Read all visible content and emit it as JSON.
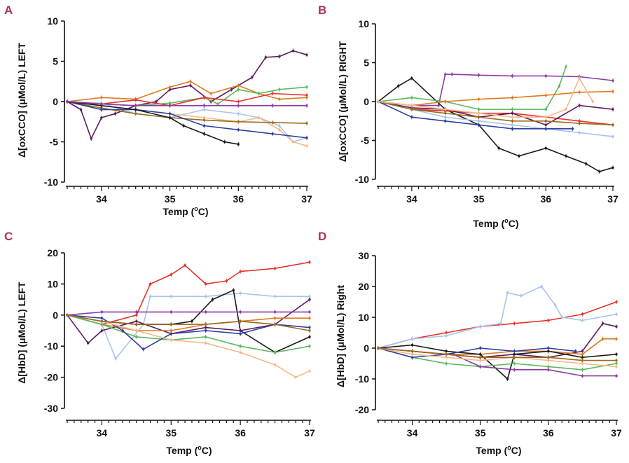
{
  "panel_letter_color": "#b03060",
  "chart_data": [
    {
      "panel": "A",
      "type": "line",
      "xlabel": "Temp (",
      "xlabel_sup": "o",
      "xlabel_end": "C)",
      "ylabel": "Δ[oxCCO] (μMol/L) LEFT",
      "xlim": [
        33.5,
        37
      ],
      "ylim": [
        -10,
        10
      ],
      "xticks": [
        34,
        35,
        36,
        37
      ],
      "yticks": [
        -10,
        -5,
        0,
        5,
        10
      ],
      "series": [
        {
          "color": "#5b1a5e",
          "x": [
            33.5,
            33.7,
            33.85,
            34.0,
            34.2,
            34.5,
            34.8,
            35.0,
            35.3,
            35.6,
            35.9,
            36.2,
            36.4,
            36.6,
            36.8,
            37.0
          ],
          "y": [
            0,
            -1,
            -4.6,
            -2,
            -1.5,
            -0.5,
            0,
            1.5,
            2,
            0,
            1.5,
            3,
            5.5,
            5.6,
            6.3,
            5.8
          ]
        },
        {
          "color": "#e07a1f",
          "x": [
            33.5,
            34.0,
            34.5,
            35.0,
            35.3,
            35.6,
            36.0,
            36.3,
            36.6,
            37.0
          ],
          "y": [
            0,
            0.5,
            0.3,
            1.8,
            2.5,
            1,
            2,
            1,
            0.3,
            0.5
          ]
        },
        {
          "color": "#5cb85c",
          "x": [
            33.5,
            34.0,
            34.5,
            35.0,
            35.5,
            35.7,
            36.0,
            36.3,
            36.6,
            37.0
          ],
          "y": [
            0,
            -0.3,
            -0.5,
            -0.2,
            0.5,
            -0.3,
            1.5,
            1,
            1.5,
            1.8
          ]
        },
        {
          "color": "#e63228",
          "x": [
            33.5,
            34.0,
            34.5,
            35.0,
            35.5,
            36.0,
            36.5,
            37.0
          ],
          "y": [
            0,
            -0.3,
            0.2,
            -0.5,
            0.5,
            0,
            1,
            0.8
          ]
        },
        {
          "color": "#a9c4ec",
          "x": [
            33.5,
            34.0,
            34.5,
            35.0,
            35.5,
            36.0,
            36.3,
            36.6,
            36.8,
            37.0
          ],
          "y": [
            0,
            -0.2,
            -1.5,
            -2,
            -1,
            -1.5,
            -2,
            -3,
            -5,
            -4.5
          ]
        },
        {
          "color": "#f6b98a",
          "x": [
            33.5,
            34.0,
            34.5,
            35.0,
            35.5,
            36.0,
            36.3,
            36.6,
            36.8,
            37.0
          ],
          "y": [
            0,
            -0.5,
            -1,
            -1.5,
            -2,
            -2.5,
            -2,
            -3.5,
            -5,
            -5.5
          ]
        },
        {
          "color": "#9a6b1f",
          "x": [
            33.5,
            34.0,
            34.5,
            35.0,
            35.5,
            36.0,
            36.5,
            37.0
          ],
          "y": [
            0,
            -0.8,
            -1.5,
            -2,
            -2.3,
            -2.5,
            -2.6,
            -2.7
          ]
        },
        {
          "color": "#2e3fa0",
          "x": [
            33.5,
            34.0,
            34.5,
            35.0,
            35.5,
            36.0,
            36.5,
            37.0
          ],
          "y": [
            0,
            -1,
            -1,
            -1.5,
            -3,
            -3.5,
            -4,
            -4.5
          ]
        },
        {
          "color": "#1a1a1a",
          "x": [
            33.5,
            34.0,
            34.5,
            35.0,
            35.2,
            35.5,
            35.8,
            36.0
          ],
          "y": [
            0,
            -0.5,
            -1,
            -2,
            -3,
            -4,
            -5,
            -5.3
          ]
        },
        {
          "color": "#8e3aa3",
          "x": [
            33.5,
            34.0,
            34.5,
            35.0,
            35.5,
            36.0,
            36.5,
            37.0
          ],
          "y": [
            0,
            -0.3,
            -0.5,
            -0.5,
            -0.5,
            -0.5,
            -0.5,
            -0.5
          ]
        }
      ]
    },
    {
      "panel": "B",
      "type": "line",
      "xlabel": "Temp (",
      "xlabel_sup": "o",
      "xlabel_end": "C)",
      "ylabel": "Δ[oxCCO] (μMol/L) RIGHT",
      "xlim": [
        33.5,
        37
      ],
      "ylim": [
        -10,
        10
      ],
      "xticks": [
        34,
        35,
        36,
        37
      ],
      "yticks": [
        -10,
        -5,
        0,
        5,
        10
      ],
      "series": [
        {
          "color": "#8e3aa3",
          "x": [
            33.5,
            34.0,
            34.4,
            34.5,
            34.6,
            35.0,
            35.5,
            36.0,
            36.5,
            37.0
          ],
          "y": [
            0,
            -0.5,
            -0.5,
            3.5,
            3.5,
            3.4,
            3.3,
            3.3,
            3.2,
            2.7
          ]
        },
        {
          "color": "#1a1a1a",
          "x": [
            33.5,
            33.8,
            34.0,
            34.5,
            35.0,
            35.3,
            35.6,
            36.0,
            36.3,
            36.6,
            36.8,
            37.0
          ],
          "y": [
            0,
            2,
            3,
            -1,
            -3,
            -6,
            -7,
            -6,
            -7,
            -8,
            -9,
            -8.5
          ]
        },
        {
          "color": "#5cb85c",
          "x": [
            33.5,
            34.0,
            34.5,
            35.0,
            35.5,
            36.0,
            36.2,
            36.3
          ],
          "y": [
            0,
            0.5,
            0,
            -1,
            -1,
            -1,
            2,
            4.5
          ]
        },
        {
          "color": "#e07a1f",
          "x": [
            33.5,
            34.0,
            34.5,
            35.0,
            35.5,
            36.0,
            36.5,
            37.0
          ],
          "y": [
            0,
            -0.5,
            0,
            0.3,
            0.5,
            0.8,
            1.2,
            1.3
          ]
        },
        {
          "color": "#e63228",
          "x": [
            33.5,
            34.0,
            34.5,
            35.0,
            35.5,
            36.0,
            36.5,
            37.0
          ],
          "y": [
            0,
            -1,
            -1.2,
            -1.5,
            -1.5,
            -2,
            -2.5,
            -3
          ]
        },
        {
          "color": "#5b1a5e",
          "x": [
            33.5,
            34.0,
            34.5,
            35.0,
            35.5,
            36.0,
            36.5,
            37.0
          ],
          "y": [
            0,
            -0.8,
            -1,
            -2,
            -1.5,
            -3,
            -0.5,
            -1
          ]
        },
        {
          "color": "#a9c4ec",
          "x": [
            33.5,
            34.0,
            34.5,
            35.0,
            35.5,
            36.0,
            36.5,
            37.0
          ],
          "y": [
            0,
            -1,
            -2,
            -2.5,
            -3,
            -3.5,
            -4,
            -4.5
          ]
        },
        {
          "color": "#2e3fa0",
          "x": [
            33.5,
            34.0,
            34.5,
            35.0,
            35.5,
            36.0,
            36.4
          ],
          "y": [
            0,
            -2,
            -2.5,
            -3,
            -3.5,
            -3.5,
            -3.5
          ]
        },
        {
          "color": "#9a6b1f",
          "x": [
            33.5,
            34.0,
            34.5,
            35.0,
            35.5,
            36.0,
            36.5,
            37.0
          ],
          "y": [
            0,
            -1,
            -1.5,
            -2,
            -2.5,
            -2.5,
            -2.8,
            -3
          ]
        },
        {
          "color": "#f6b98a",
          "x": [
            33.5,
            34.0,
            34.5,
            35.0,
            35.5,
            36.0,
            36.3,
            36.5,
            36.7
          ],
          "y": [
            0,
            -0.5,
            -1,
            -1.5,
            -2,
            -2,
            -1,
            3,
            0
          ]
        }
      ]
    },
    {
      "panel": "C",
      "type": "line",
      "xlabel": "Temp (",
      "xlabel_sup": "o",
      "xlabel_end": "C)",
      "ylabel": "Δ[HbD] (μMol/L) LEFT",
      "xlim": [
        33.5,
        37
      ],
      "ylim": [
        -30,
        20
      ],
      "xticks": [
        34,
        35,
        36,
        37
      ],
      "yticks": [
        -30,
        -20,
        -10,
        0,
        10,
        20
      ],
      "series": [
        {
          "color": "#e63228",
          "x": [
            33.5,
            34.0,
            34.5,
            34.7,
            35.0,
            35.2,
            35.5,
            35.8,
            36.0,
            36.5,
            37.0
          ],
          "y": [
            0,
            -3,
            0,
            10,
            13,
            16,
            10,
            11,
            14,
            15,
            17
          ]
        },
        {
          "color": "#a9c4ec",
          "x": [
            33.5,
            34.0,
            34.2,
            34.6,
            34.7,
            35.0,
            35.5,
            36.0,
            36.5,
            37.0
          ],
          "y": [
            0,
            -3,
            -14,
            -3,
            6,
            6,
            6,
            7,
            6,
            6
          ]
        },
        {
          "color": "#1a1a1a",
          "x": [
            33.5,
            34.0,
            34.5,
            35.0,
            35.3,
            35.6,
            35.9,
            36.0,
            36.5,
            37.0
          ],
          "y": [
            0,
            -2,
            -3,
            -3,
            -2,
            5,
            8,
            -5,
            -12,
            -7
          ]
        },
        {
          "color": "#5b1a5e",
          "x": [
            33.5,
            33.8,
            34.0,
            34.5,
            35.0,
            35.5,
            36.0,
            36.5,
            37.0
          ],
          "y": [
            0,
            -9,
            -5,
            -2,
            -6,
            -4,
            -5,
            -3,
            5
          ]
        },
        {
          "color": "#8e3aa3",
          "x": [
            33.5,
            34.0,
            34.5,
            35.0,
            35.5,
            36.0,
            36.5,
            37.0
          ],
          "y": [
            0,
            1,
            1,
            1,
            1,
            1,
            1,
            1
          ]
        },
        {
          "color": "#e07a1f",
          "x": [
            33.5,
            34.0,
            34.5,
            35.0,
            35.5,
            36.0,
            36.5,
            37.0
          ],
          "y": [
            0,
            -3,
            -5,
            -5,
            -3,
            -2,
            -1,
            -1
          ]
        },
        {
          "color": "#5cb85c",
          "x": [
            33.5,
            34.0,
            34.5,
            35.0,
            35.5,
            36.0,
            36.5,
            37.0
          ],
          "y": [
            0,
            -3,
            -7,
            -8,
            -7,
            -10,
            -12,
            -10
          ]
        },
        {
          "color": "#2e3fa0",
          "x": [
            33.5,
            34.0,
            34.3,
            34.6,
            35.0,
            35.5,
            36.0,
            36.5,
            37.0
          ],
          "y": [
            0,
            -1,
            -5,
            -11,
            -6,
            -5,
            -6,
            -3,
            -4
          ]
        },
        {
          "color": "#f6b98a",
          "x": [
            33.5,
            34.0,
            34.5,
            35.0,
            35.5,
            36.0,
            36.5,
            36.8,
            37.0
          ],
          "y": [
            0,
            -2,
            -5,
            -8,
            -9,
            -12,
            -16,
            -20,
            -18
          ]
        },
        {
          "color": "#9a6b1f",
          "x": [
            33.5,
            34.0,
            34.5,
            35.0,
            35.5,
            36.0,
            36.5,
            37.0
          ],
          "y": [
            0,
            -2,
            -3,
            -3,
            -3,
            -2,
            -3,
            -5
          ]
        }
      ]
    },
    {
      "panel": "D",
      "type": "line",
      "xlabel": "Temp (",
      "xlabel_sup": "o",
      "xlabel_end": "C)",
      "ylabel": "Δ[HbD] (μMol/L) Right",
      "xlim": [
        33.5,
        37
      ],
      "ylim": [
        -20,
        30
      ],
      "xticks": [
        34,
        35,
        36,
        37
      ],
      "yticks": [
        -20,
        -10,
        0,
        10,
        20,
        30
      ],
      "series": [
        {
          "color": "#e63228",
          "x": [
            33.5,
            34.0,
            34.5,
            35.0,
            35.5,
            36.0,
            36.5,
            37.0
          ],
          "y": [
            0,
            3,
            5,
            7,
            8,
            9,
            11,
            15
          ]
        },
        {
          "color": "#a9c4ec",
          "x": [
            33.5,
            34.0,
            34.5,
            35.0,
            35.3,
            35.4,
            35.6,
            35.9,
            36.1,
            36.2,
            36.5,
            37.0
          ],
          "y": [
            0,
            3,
            4,
            7,
            8,
            18,
            17,
            20,
            14,
            10,
            9,
            11
          ]
        },
        {
          "color": "#5b1a5e",
          "x": [
            33.5,
            34.0,
            34.5,
            35.0,
            35.5,
            36.0,
            36.5,
            36.8,
            37.0
          ],
          "y": [
            0,
            -1,
            -2,
            -3,
            -2,
            -3,
            -1,
            8,
            7
          ]
        },
        {
          "color": "#e07a1f",
          "x": [
            33.5,
            34.0,
            34.5,
            35.0,
            35.5,
            36.0,
            36.5,
            36.8,
            37.0
          ],
          "y": [
            0,
            -1,
            -2,
            -2,
            -1,
            -1,
            -2,
            3,
            3
          ]
        },
        {
          "color": "#1a1a1a",
          "x": [
            33.5,
            34.0,
            34.5,
            35.0,
            35.4,
            35.5,
            36.0,
            36.5,
            37.0
          ],
          "y": [
            0,
            1,
            -1,
            -2,
            -10,
            -2,
            -1,
            -3,
            -2
          ]
        },
        {
          "color": "#5cb85c",
          "x": [
            33.5,
            34.0,
            34.5,
            35.0,
            35.5,
            36.0,
            36.5,
            37.0
          ],
          "y": [
            0,
            -3,
            -5,
            -6,
            -5,
            -6,
            -7,
            -5
          ]
        },
        {
          "color": "#8e3aa3",
          "x": [
            33.5,
            34.0,
            34.5,
            34.6,
            35.0,
            35.5,
            36.0,
            36.5,
            37.0
          ],
          "y": [
            0,
            -1,
            -2,
            -2,
            -6,
            -7,
            -7,
            -9,
            -9
          ]
        },
        {
          "color": "#2e3fa0",
          "x": [
            33.5,
            34.0,
            34.5,
            35.0,
            35.5,
            36.0,
            36.4
          ],
          "y": [
            0,
            -3,
            -2,
            0,
            -1,
            0,
            -1
          ]
        },
        {
          "color": "#f6b98a",
          "x": [
            33.5,
            34.0,
            34.5,
            35.0,
            35.5,
            36.0,
            36.5,
            37.0
          ],
          "y": [
            0,
            -2,
            -3,
            -4,
            -3,
            -4,
            -5,
            -6
          ]
        },
        {
          "color": "#9a6b1f",
          "x": [
            33.5,
            34.0,
            34.5,
            35.0,
            35.5,
            36.0,
            36.5,
            37.0
          ],
          "y": [
            0,
            -1,
            -2,
            -3,
            -3,
            -3,
            -4,
            -4
          ]
        }
      ]
    }
  ]
}
